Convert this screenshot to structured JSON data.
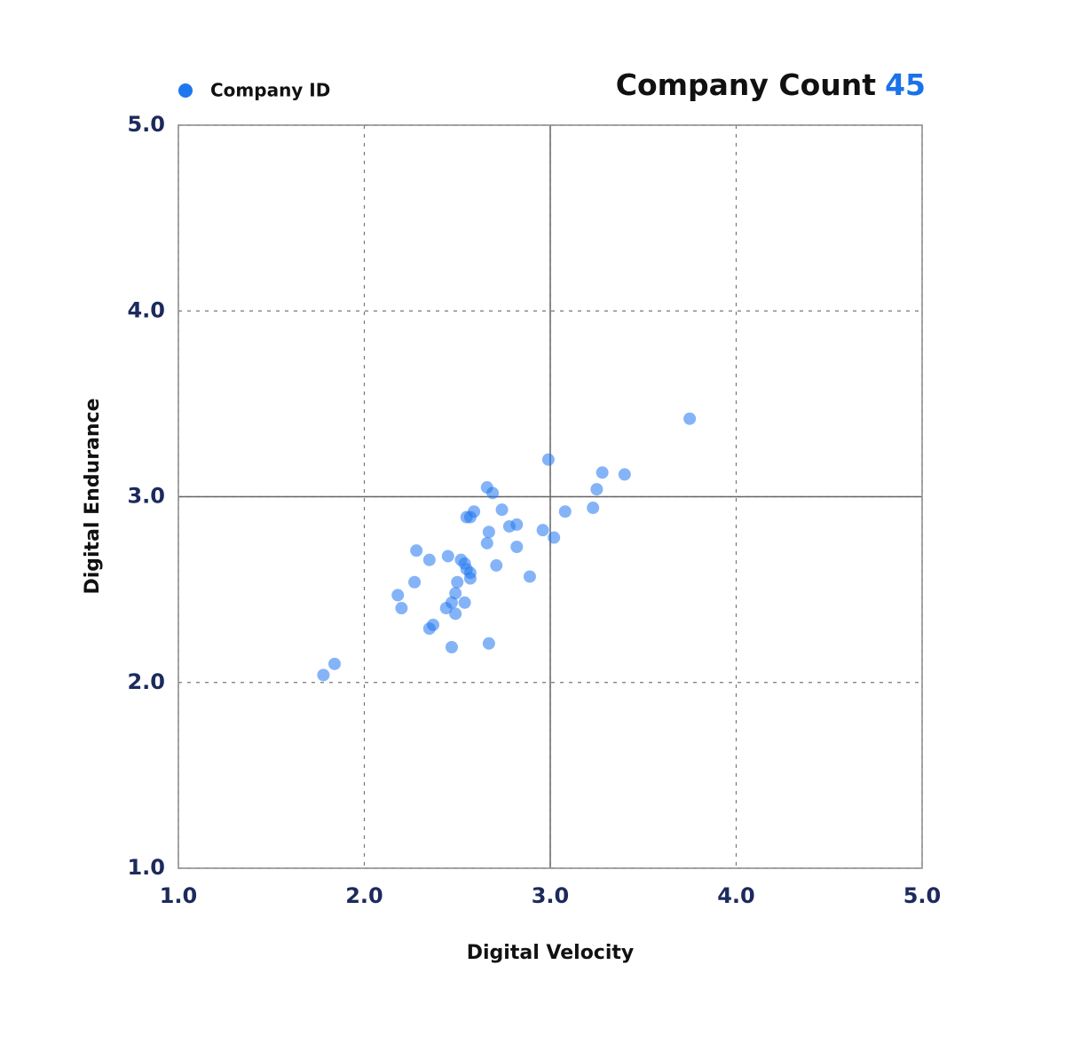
{
  "chart_data": {
    "type": "scatter",
    "title": "Company Count",
    "count": 45,
    "x_label": "Digital Velocity",
    "y_label": "Digital Endurance",
    "series": [
      {
        "name": "Company ID",
        "color": "#1f77f0",
        "x": [
          3.75,
          2.99,
          3.28,
          3.4,
          2.66,
          2.69,
          3.25,
          3.23,
          3.08,
          2.59,
          2.74,
          2.55,
          2.57,
          2.82,
          2.78,
          2.96,
          2.67,
          3.02,
          2.66,
          2.82,
          2.28,
          2.45,
          2.35,
          2.52,
          2.54,
          2.71,
          2.55,
          2.57,
          2.89,
          2.57,
          2.5,
          2.27,
          2.18,
          2.49,
          2.54,
          2.47,
          2.2,
          2.44,
          2.49,
          2.37,
          2.35,
          2.67,
          2.47,
          1.84,
          1.78
        ],
        "values": [
          3.42,
          3.2,
          3.13,
          3.12,
          3.05,
          3.02,
          3.04,
          2.94,
          2.92,
          2.92,
          2.93,
          2.89,
          2.89,
          2.85,
          2.84,
          2.82,
          2.81,
          2.78,
          2.75,
          2.73,
          2.71,
          2.68,
          2.66,
          2.66,
          2.64,
          2.63,
          2.61,
          2.59,
          2.57,
          2.56,
          2.54,
          2.54,
          2.47,
          2.48,
          2.43,
          2.43,
          2.4,
          2.4,
          2.37,
          2.31,
          2.29,
          2.21,
          2.19,
          2.1,
          2.04
        ]
      }
    ],
    "xlim": [
      1,
      5
    ],
    "ylim": [
      1,
      5
    ],
    "xticks": [
      {
        "value": 1,
        "label": "1.0"
      },
      {
        "value": 2,
        "label": "2.0"
      },
      {
        "value": 3,
        "label": "3.0"
      },
      {
        "value": 4,
        "label": "4.0"
      },
      {
        "value": 5,
        "label": "5.0"
      }
    ],
    "yticks": [
      {
        "value": 1,
        "label": "1.0"
      },
      {
        "value": 2,
        "label": "2.0"
      },
      {
        "value": 3,
        "label": "3.0"
      },
      {
        "value": 4,
        "label": "4.0"
      },
      {
        "value": 5,
        "label": "5.0"
      }
    ],
    "divider": {
      "x": 3,
      "y": 3
    },
    "grid": true
  }
}
